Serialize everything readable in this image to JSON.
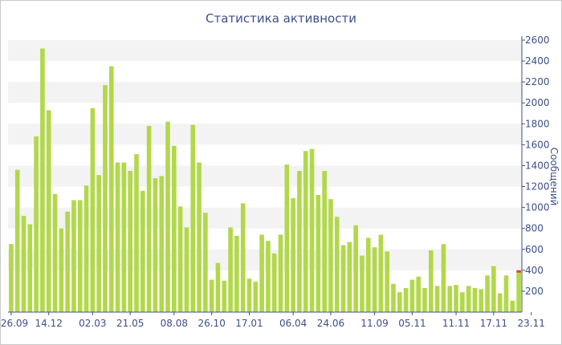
{
  "chart_data": {
    "type": "bar",
    "title": "Статистика активности",
    "ylabel": "Сообщений",
    "xlabel": "",
    "ylim": [
      0,
      2600
    ],
    "yticks": [
      200,
      400,
      600,
      800,
      1000,
      1200,
      1400,
      1600,
      1800,
      2000,
      2200,
      2400,
      2600
    ],
    "x_tick_labels": [
      {
        "index": 0,
        "label": "26.09"
      },
      {
        "index": 6,
        "label": "14.12"
      },
      {
        "index": 13,
        "label": "02.03"
      },
      {
        "index": 19,
        "label": "21.05"
      },
      {
        "index": 26,
        "label": "08.08"
      },
      {
        "index": 32,
        "label": "26.10"
      },
      {
        "index": 38,
        "label": "17.01"
      },
      {
        "index": 45,
        "label": "06.04"
      },
      {
        "index": 51,
        "label": "24.06"
      },
      {
        "index": 58,
        "label": "11.09"
      },
      {
        "index": 64,
        "label": "05.11"
      },
      {
        "index": 71,
        "label": "11.11"
      },
      {
        "index": 77,
        "label": "17.11"
      },
      {
        "index": 83,
        "label": "23.11"
      }
    ],
    "grid": "horizontal-bands",
    "bar_color": "#b2d84a",
    "last_bar_cap_color": "#e0453a",
    "values": [
      650,
      1360,
      920,
      840,
      1680,
      2520,
      1930,
      1130,
      800,
      960,
      1070,
      1070,
      1210,
      1950,
      1310,
      2170,
      2350,
      1430,
      1430,
      1350,
      1510,
      1160,
      1780,
      1280,
      1300,
      1820,
      1590,
      1010,
      810,
      1790,
      1430,
      950,
      310,
      470,
      300,
      810,
      730,
      1040,
      320,
      290,
      740,
      680,
      560,
      740,
      1410,
      1090,
      1350,
      1540,
      1560,
      1120,
      1350,
      1080,
      910,
      640,
      670,
      830,
      540,
      710,
      620,
      740,
      580,
      270,
      190,
      230,
      310,
      340,
      230,
      590,
      250,
      650,
      250,
      260,
      190,
      250,
      230,
      220,
      350,
      440,
      180,
      350,
      110,
      400
    ]
  }
}
